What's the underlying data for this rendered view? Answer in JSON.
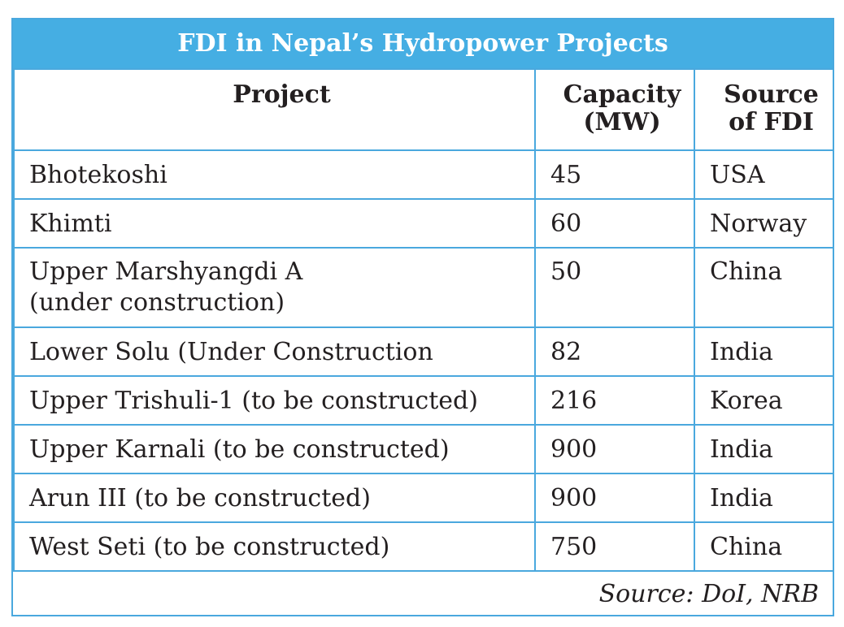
{
  "title": "FDI in Nepal’s Hydropower Projects",
  "headers": {
    "project": "Project",
    "capacity_line1": "Capacity",
    "capacity_line2": "(MW)",
    "source_line1": "Source",
    "source_line2": "of FDI"
  },
  "rows": [
    {
      "project": "Bhotekoshi",
      "project_line2": "",
      "capacity": "45",
      "source": "USA"
    },
    {
      "project": "Khimti",
      "project_line2": "",
      "capacity": "60",
      "source": "Norway"
    },
    {
      "project": "Upper Marshyangdi A",
      "project_line2": "(under construction)",
      "capacity": "50",
      "source": "China"
    },
    {
      "project": "Lower Solu (Under Construction",
      "project_line2": "",
      "capacity": "82",
      "source": "India"
    },
    {
      "project": "Upper Trishuli-1 (to be constructed)",
      "project_line2": "",
      "capacity": "216",
      "source": "Korea"
    },
    {
      "project": "Upper Karnali (to be constructed)",
      "project_line2": "",
      "capacity": "900",
      "source": "India"
    },
    {
      "project": "Arun III (to be constructed)",
      "project_line2": "",
      "capacity": "900",
      "source": "India"
    },
    {
      "project": "West Seti (to be constructed)",
      "project_line2": "",
      "capacity": "750",
      "source": "China"
    }
  ],
  "source_note": "Source: DoI, NRB",
  "colors": {
    "accent": "#45aee3",
    "border": "#4aa8de",
    "text": "#231f20"
  }
}
